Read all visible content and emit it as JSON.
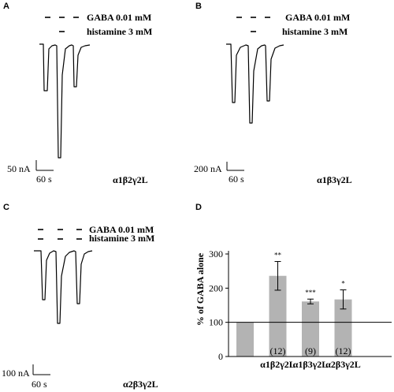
{
  "panels": [
    {
      "letter": "A",
      "gaba_label": "GABA 0.01 mM",
      "hist_label": "histamine 3 mM",
      "scale_current": "50 nA",
      "scale_time": "60 s",
      "subunit": "α1β2γ2L"
    },
    {
      "letter": "B",
      "gaba_label": "GABA 0.01 mM",
      "hist_label": "histamine 3 mM",
      "scale_current": "200 nA",
      "scale_time": "60 s",
      "subunit": "α1β3γ2L"
    },
    {
      "letter": "C",
      "gaba_label": "GABA 0.01 mM",
      "hist_label": "histamine 3 mM",
      "scale_current": "100 nA",
      "scale_time": "60 s",
      "subunit": "α2β3γ2L"
    }
  ],
  "chart_data": {
    "panel_letter": "D",
    "type": "bar",
    "ylabel": "% of GABA alone",
    "ylim": [
      0,
      300
    ],
    "yticks": [
      0,
      100,
      200,
      300
    ],
    "categories": [
      "",
      "α1β2γ2L",
      "α1β3γ2L",
      "α2β3γ2L"
    ],
    "values": [
      100,
      236,
      161,
      167
    ],
    "errors": [
      0,
      42,
      7,
      28
    ],
    "n_labels": [
      "",
      "(12)",
      "(9)",
      "(12)"
    ],
    "significance": [
      "",
      "**",
      "***",
      "*"
    ],
    "reference_line": 100,
    "bar_color": "#b3b3b3"
  }
}
